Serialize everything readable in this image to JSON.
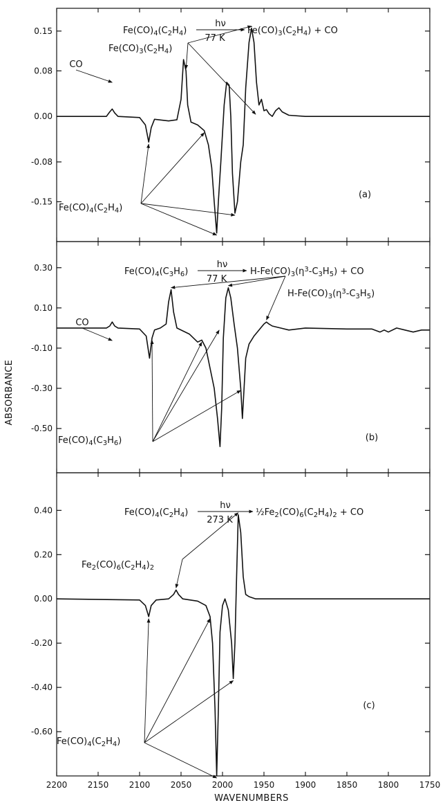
{
  "chart_data": {
    "type": "line",
    "xlabel": "WAVENUMBERS",
    "ylabel": "ABSORBANCE",
    "xlim": [
      2200,
      1750
    ],
    "x_ticks": [
      "2200",
      "2150",
      "2100",
      "2050",
      "2000",
      "1950",
      "1900",
      "1850",
      "1800",
      "1750"
    ],
    "panels": [
      {
        "id": "a",
        "panel_label": "(a)",
        "reaction": {
          "reactant": "Fe(CO)4(C2H4)",
          "above_arrow": "hν",
          "below_arrow": "77 K",
          "products": "Fe(CO)3(C2H4) + CO"
        },
        "ylim": [
          -0.22,
          0.19
        ],
        "y_ticks": [
          "0.15",
          "0.08",
          "0.00",
          "-0.08",
          "-0.15"
        ],
        "y_tick_values": [
          0.15,
          0.08,
          0.0,
          -0.08,
          -0.15
        ],
        "annotations": {
          "co": "CO",
          "product": "Fe(CO)3(C2H4)",
          "reactant": "Fe(CO)4(C2H4)"
        },
        "series": [
          {
            "x": [
              2200,
              2140,
              2136,
              2133,
              2130,
              2126,
              2100,
              2093,
              2089,
              2086,
              2082,
              2065,
              2055,
              2050,
              2047,
              2044,
              2042,
              2038,
              2030,
              2022,
              2017,
              2013,
              2010,
              2007,
              2005,
              2002,
              1998,
              1995,
              1992,
              1990,
              1988,
              1985,
              1982,
              1978,
              1975,
              1972,
              1968,
              1965,
              1962,
              1959,
              1956,
              1953,
              1950,
              1947,
              1944,
              1940,
              1936,
              1932,
              1928,
              1920,
              1900,
              1750
            ],
            "y": [
              0.0,
              0.0,
              0.008,
              0.013,
              0.006,
              0.0,
              -0.002,
              -0.015,
              -0.045,
              -0.02,
              -0.005,
              -0.008,
              -0.006,
              0.03,
              0.1,
              0.08,
              0.02,
              -0.01,
              -0.015,
              -0.025,
              -0.05,
              -0.09,
              -0.15,
              -0.205,
              -0.15,
              -0.08,
              0.02,
              0.06,
              0.055,
              0.0,
              -0.1,
              -0.17,
              -0.15,
              -0.08,
              -0.05,
              0.05,
              0.13,
              0.155,
              0.13,
              0.06,
              0.02,
              0.03,
              0.01,
              0.012,
              0.005,
              0.0,
              0.01,
              0.015,
              0.008,
              0.002,
              0.0,
              0.0
            ]
          }
        ]
      },
      {
        "id": "b",
        "panel_label": "(b)",
        "reaction": {
          "reactant": "Fe(CO)4(C3H6)",
          "above_arrow": "hν",
          "below_arrow": "77 K",
          "products": "H-Fe(CO)3(η3-C3H5) + CO"
        },
        "ylim": [
          -0.72,
          0.43
        ],
        "y_ticks": [
          "0.30",
          "0.10",
          "-0.10",
          "-0.30",
          "-0.50"
        ],
        "y_tick_values": [
          0.3,
          0.1,
          -0.1,
          -0.3,
          -0.5
        ],
        "annotations": {
          "co": "CO",
          "product": "H-Fe(CO)3(η3-C3H5)",
          "reactant": "Fe(CO)4(C3H6)"
        },
        "series": [
          {
            "x": [
              2200,
              2140,
              2136,
              2133,
              2130,
              2126,
              2100,
              2092,
              2088,
              2085,
              2082,
              2075,
              2068,
              2065,
              2062,
              2059,
              2055,
              2040,
              2030,
              2025,
              2020,
              2015,
              2010,
              2006,
              2003,
              2001,
              1999,
              1996,
              1993,
              1990,
              1986,
              1982,
              1978,
              1976,
              1972,
              1968,
              1962,
              1958,
              1954,
              1950,
              1947,
              1944,
              1940,
              1930,
              1920,
              1900,
              1850,
              1820,
              1810,
              1805,
              1800,
              1790,
              1780,
              1770,
              1760,
              1750
            ],
            "y": [
              0.0,
              0.0,
              0.01,
              0.03,
              0.01,
              0.0,
              -0.005,
              -0.04,
              -0.15,
              -0.05,
              -0.01,
              0.0,
              0.02,
              0.13,
              0.19,
              0.08,
              0.0,
              -0.03,
              -0.07,
              -0.06,
              -0.1,
              -0.2,
              -0.3,
              -0.45,
              -0.59,
              -0.4,
              -0.05,
              0.15,
              0.2,
              0.15,
              0.02,
              -0.1,
              -0.3,
              -0.45,
              -0.15,
              -0.08,
              -0.04,
              -0.02,
              0.0,
              0.02,
              0.03,
              0.02,
              0.01,
              0.0,
              -0.01,
              0.0,
              -0.005,
              -0.005,
              -0.02,
              -0.01,
              -0.02,
              0.0,
              -0.01,
              -0.02,
              -0.01,
              -0.01
            ]
          }
        ]
      },
      {
        "id": "c",
        "panel_label": "(c)",
        "reaction": {
          "reactant": "Fe(CO)4(C2H4)",
          "above_arrow": "hν",
          "below_arrow": "273 K",
          "products": "½Fe2(CO)6(C2H4)2 + CO"
        },
        "ylim": [
          -0.8,
          0.57
        ],
        "y_ticks": [
          "0.40",
          "0.20",
          "0.00",
          "-0.20",
          "-0.40",
          "-0.60"
        ],
        "y_tick_values": [
          0.4,
          0.2,
          0.0,
          -0.2,
          -0.4,
          -0.6
        ],
        "annotations": {
          "product": "Fe2(CO)6(C2H4)2",
          "reactant": "Fe(CO)4(C2H4)"
        },
        "series": [
          {
            "x": [
              2200,
              2100,
              2093,
              2089,
              2086,
              2080,
              2065,
              2059,
              2056,
              2053,
              2048,
              2030,
              2020,
              2015,
              2012,
              2009,
              2007,
              2005,
              2003,
              2000,
              1997,
              1993,
              1989,
              1987,
              1985,
              1983,
              1981,
              1978,
              1975,
              1972,
              1968,
              1960,
              1940,
              1900,
              1750
            ],
            "y": [
              0.0,
              -0.005,
              -0.03,
              -0.08,
              -0.03,
              -0.005,
              0.0,
              0.02,
              0.04,
              0.02,
              0.0,
              -0.01,
              -0.03,
              -0.08,
              -0.2,
              -0.5,
              -0.8,
              -0.5,
              -0.15,
              -0.03,
              0.0,
              -0.05,
              -0.2,
              -0.36,
              -0.2,
              0.1,
              0.38,
              0.3,
              0.1,
              0.02,
              0.01,
              0.0,
              0.0,
              0.0,
              0.0
            ]
          }
        ]
      }
    ]
  }
}
